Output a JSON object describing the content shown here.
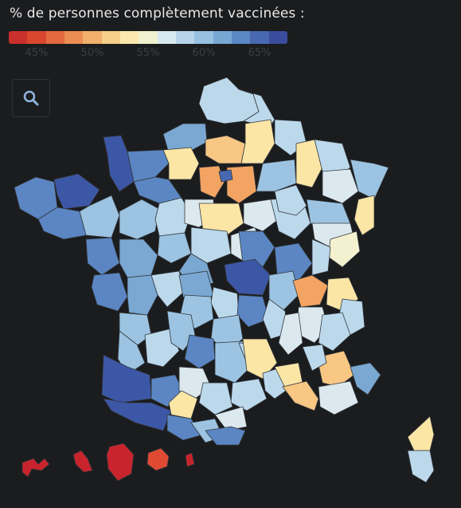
{
  "legend": {
    "title": "% de personnes complètement vaccinées :",
    "ticks": [
      "45%",
      "50%",
      "55%",
      "60%",
      "65%"
    ],
    "colors": [
      "#c9302c",
      "#d9472f",
      "#e46a3e",
      "#ec8d52",
      "#f2b06b",
      "#f7cf8a",
      "#fbe8ad",
      "#eff1cf",
      "#d8e8ef",
      "#b7d5ea",
      "#97c0e1",
      "#78a7d3",
      "#5a88c4",
      "#4869b1",
      "#3a4c9c"
    ]
  },
  "search": {
    "icon": "search-icon"
  },
  "map": {
    "scale_colors": {
      "deep_red": "#c8242d",
      "red_orange": "#e04a32",
      "orange": "#f4a462",
      "light_orange": "#f8c784",
      "pale_yellow": "#fce6a6",
      "pale_cream": "#f4f1d0",
      "very_light_blue": "#dbe9ee",
      "light_blue": "#bcd9ec",
      "mid_light_blue": "#9cc4e2",
      "mid_blue": "#7aa8d2",
      "blue": "#5b86c3",
      "dark_blue": "#3c57a6"
    }
  }
}
